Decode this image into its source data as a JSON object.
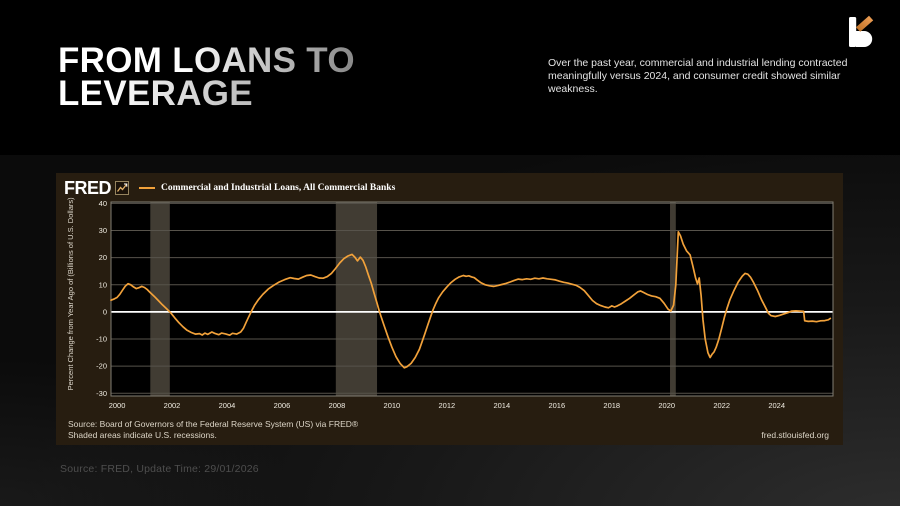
{
  "slide": {
    "title_line1": "FROM LOANS TO",
    "title_line2": "LEVERAGE",
    "description": "Over the past year, commercial and industrial lending contracted meaningfully versus 2024, and consumer credit showed similar weakness.",
    "footer": "Source: FRED, Update Time: 29/01/2026"
  },
  "chart": {
    "brand": "FRED",
    "legend_label": "Commercial and Industrial Loans, All Commercial Banks",
    "source_line1": "Source: Board of Governors of the Federal Reserve System (US) via FRED®",
    "source_line2": "Shaded areas indicate U.S. recessions.",
    "site": "fred.stlouisfed.org"
  },
  "chart_data": {
    "type": "line",
    "title": "Commercial and Industrial Loans, All Commercial Banks",
    "ylabel": "Percent Change from Year Ago of (Billions of U.S. Dollars)",
    "xlabel": "",
    "x_ticks": [
      2000,
      2002,
      2004,
      2006,
      2008,
      2010,
      2012,
      2014,
      2016,
      2018,
      2020,
      2022,
      2024
    ],
    "y_ticks": [
      40,
      30,
      20,
      10,
      0,
      -10,
      -20,
      -30
    ],
    "xlim": [
      1999.78,
      2026.05
    ],
    "ylim": [
      -31,
      40.5
    ],
    "grid": true,
    "legend_position": "top-left",
    "line_color": "#f1a13a",
    "zero_line_color": "#ffffff",
    "plot_bg": "#000000",
    "panel_bg": "#271d10",
    "grid_color": "#57534b",
    "border_color": "#827e74",
    "recession_band_color": "#413c33",
    "tick_label_color": "#f0ece2",
    "recessions": [
      [
        2001.21,
        2001.92
      ],
      [
        2007.96,
        2009.46
      ],
      [
        2020.12,
        2020.33
      ]
    ],
    "series": [
      {
        "name": "Commercial and Industrial Loans, All Commercial Banks",
        "points": [
          [
            1999.78,
            4.3
          ],
          [
            1999.9,
            4.8
          ],
          [
            2000.0,
            5.3
          ],
          [
            2000.1,
            6.5
          ],
          [
            2000.2,
            8.0
          ],
          [
            2000.3,
            9.5
          ],
          [
            2000.4,
            10.4
          ],
          [
            2000.5,
            10.0
          ],
          [
            2000.6,
            9.2
          ],
          [
            2000.7,
            8.6
          ],
          [
            2000.8,
            8.9
          ],
          [
            2000.9,
            9.4
          ],
          [
            2001.0,
            9.0
          ],
          [
            2001.1,
            8.2
          ],
          [
            2001.2,
            7.2
          ],
          [
            2001.35,
            5.8
          ],
          [
            2001.5,
            4.2
          ],
          [
            2001.65,
            2.6
          ],
          [
            2001.8,
            1.2
          ],
          [
            2001.95,
            -0.3
          ],
          [
            2002.1,
            -2.2
          ],
          [
            2002.25,
            -4.0
          ],
          [
            2002.4,
            -5.5
          ],
          [
            2002.55,
            -6.8
          ],
          [
            2002.7,
            -7.6
          ],
          [
            2002.85,
            -8.2
          ],
          [
            2003.0,
            -8.0
          ],
          [
            2003.1,
            -8.5
          ],
          [
            2003.2,
            -7.8
          ],
          [
            2003.3,
            -8.3
          ],
          [
            2003.45,
            -7.4
          ],
          [
            2003.55,
            -7.9
          ],
          [
            2003.7,
            -8.4
          ],
          [
            2003.8,
            -7.8
          ],
          [
            2003.95,
            -8.1
          ],
          [
            2004.1,
            -8.6
          ],
          [
            2004.2,
            -7.9
          ],
          [
            2004.35,
            -8.2
          ],
          [
            2004.5,
            -7.4
          ],
          [
            2004.6,
            -6.0
          ],
          [
            2004.7,
            -3.8
          ],
          [
            2004.8,
            -1.6
          ],
          [
            2004.9,
            0.4
          ],
          [
            2005.0,
            2.4
          ],
          [
            2005.15,
            4.6
          ],
          [
            2005.3,
            6.4
          ],
          [
            2005.5,
            8.4
          ],
          [
            2005.7,
            9.8
          ],
          [
            2005.9,
            11.0
          ],
          [
            2006.1,
            11.9
          ],
          [
            2006.3,
            12.6
          ],
          [
            2006.45,
            12.3
          ],
          [
            2006.6,
            12.1
          ],
          [
            2006.75,
            12.8
          ],
          [
            2006.9,
            13.4
          ],
          [
            2007.05,
            13.6
          ],
          [
            2007.2,
            13.0
          ],
          [
            2007.35,
            12.5
          ],
          [
            2007.5,
            12.4
          ],
          [
            2007.65,
            13.0
          ],
          [
            2007.8,
            14.2
          ],
          [
            2007.95,
            16.0
          ],
          [
            2008.1,
            18.0
          ],
          [
            2008.25,
            19.6
          ],
          [
            2008.4,
            20.6
          ],
          [
            2008.55,
            21.2
          ],
          [
            2008.65,
            20.2
          ],
          [
            2008.75,
            18.8
          ],
          [
            2008.85,
            20.2
          ],
          [
            2008.95,
            19.0
          ],
          [
            2009.05,
            16.5
          ],
          [
            2009.15,
            13.5
          ],
          [
            2009.25,
            10.5
          ],
          [
            2009.35,
            7.0
          ],
          [
            2009.45,
            3.5
          ],
          [
            2009.55,
            0.0
          ],
          [
            2009.7,
            -4.5
          ],
          [
            2009.85,
            -9.0
          ],
          [
            2010.0,
            -13.0
          ],
          [
            2010.15,
            -16.5
          ],
          [
            2010.3,
            -19.0
          ],
          [
            2010.45,
            -20.6
          ],
          [
            2010.55,
            -20.2
          ],
          [
            2010.7,
            -19.0
          ],
          [
            2010.85,
            -16.8
          ],
          [
            2011.0,
            -13.8
          ],
          [
            2011.1,
            -11.0
          ],
          [
            2011.2,
            -8.0
          ],
          [
            2011.3,
            -5.0
          ],
          [
            2011.4,
            -2.0
          ],
          [
            2011.5,
            0.8
          ],
          [
            2011.6,
            3.2
          ],
          [
            2011.7,
            5.2
          ],
          [
            2011.85,
            7.4
          ],
          [
            2012.0,
            9.2
          ],
          [
            2012.15,
            10.8
          ],
          [
            2012.3,
            12.0
          ],
          [
            2012.45,
            12.9
          ],
          [
            2012.6,
            13.4
          ],
          [
            2012.7,
            13.1
          ],
          [
            2012.8,
            13.3
          ],
          [
            2012.9,
            12.9
          ],
          [
            2013.0,
            12.6
          ],
          [
            2013.1,
            11.8
          ],
          [
            2013.25,
            10.7
          ],
          [
            2013.4,
            10.0
          ],
          [
            2013.55,
            9.6
          ],
          [
            2013.7,
            9.4
          ],
          [
            2013.85,
            9.7
          ],
          [
            2014.0,
            10.1
          ],
          [
            2014.15,
            10.5
          ],
          [
            2014.3,
            11.0
          ],
          [
            2014.45,
            11.6
          ],
          [
            2014.6,
            12.1
          ],
          [
            2014.75,
            11.9
          ],
          [
            2014.9,
            12.2
          ],
          [
            2015.05,
            12.0
          ],
          [
            2015.2,
            12.4
          ],
          [
            2015.35,
            12.2
          ],
          [
            2015.5,
            12.5
          ],
          [
            2015.65,
            12.2
          ],
          [
            2015.8,
            12.0
          ],
          [
            2015.95,
            11.8
          ],
          [
            2016.1,
            11.3
          ],
          [
            2016.25,
            10.9
          ],
          [
            2016.4,
            10.6
          ],
          [
            2016.55,
            10.2
          ],
          [
            2016.7,
            9.8
          ],
          [
            2016.85,
            9.0
          ],
          [
            2017.0,
            7.8
          ],
          [
            2017.15,
            6.0
          ],
          [
            2017.3,
            4.2
          ],
          [
            2017.45,
            3.0
          ],
          [
            2017.6,
            2.3
          ],
          [
            2017.75,
            1.8
          ],
          [
            2017.88,
            1.5
          ],
          [
            2018.0,
            2.2
          ],
          [
            2018.1,
            1.8
          ],
          [
            2018.2,
            2.2
          ],
          [
            2018.35,
            3.0
          ],
          [
            2018.5,
            4.0
          ],
          [
            2018.65,
            5.0
          ],
          [
            2018.8,
            6.2
          ],
          [
            2018.95,
            7.4
          ],
          [
            2019.05,
            7.7
          ],
          [
            2019.15,
            7.2
          ],
          [
            2019.3,
            6.4
          ],
          [
            2019.45,
            5.9
          ],
          [
            2019.6,
            5.6
          ],
          [
            2019.75,
            5.0
          ],
          [
            2019.9,
            3.2
          ],
          [
            2020.05,
            1.0
          ],
          [
            2020.15,
            0.3
          ],
          [
            2020.25,
            2.5
          ],
          [
            2020.33,
            10.0
          ],
          [
            2020.42,
            29.5
          ],
          [
            2020.5,
            28.0
          ],
          [
            2020.6,
            25.0
          ],
          [
            2020.72,
            22.5
          ],
          [
            2020.85,
            21.0
          ],
          [
            2020.95,
            17.0
          ],
          [
            2021.05,
            12.5
          ],
          [
            2021.12,
            10.3
          ],
          [
            2021.18,
            12.5
          ],
          [
            2021.25,
            6.0
          ],
          [
            2021.32,
            -3.0
          ],
          [
            2021.4,
            -10.0
          ],
          [
            2021.5,
            -15.0
          ],
          [
            2021.58,
            -16.8
          ],
          [
            2021.65,
            -15.6
          ],
          [
            2021.72,
            -14.8
          ],
          [
            2021.8,
            -13.0
          ],
          [
            2021.9,
            -10.0
          ],
          [
            2022.0,
            -6.0
          ],
          [
            2022.1,
            -2.0
          ],
          [
            2022.2,
            1.5
          ],
          [
            2022.3,
            4.5
          ],
          [
            2022.45,
            8.0
          ],
          [
            2022.6,
            11.0
          ],
          [
            2022.75,
            13.2
          ],
          [
            2022.85,
            14.2
          ],
          [
            2022.95,
            13.9
          ],
          [
            2023.05,
            12.8
          ],
          [
            2023.15,
            11.0
          ],
          [
            2023.3,
            8.0
          ],
          [
            2023.45,
            4.5
          ],
          [
            2023.6,
            1.5
          ],
          [
            2023.7,
            -0.5
          ],
          [
            2023.8,
            -1.4
          ],
          [
            2023.95,
            -1.7
          ],
          [
            2024.1,
            -1.3
          ],
          [
            2024.25,
            -0.8
          ],
          [
            2024.4,
            -0.3
          ],
          [
            2024.55,
            0.3
          ],
          [
            2024.7,
            0.4
          ],
          [
            2024.85,
            0.3
          ],
          [
            2024.98,
            0.2
          ],
          [
            2025.02,
            -3.3
          ],
          [
            2025.15,
            -3.5
          ],
          [
            2025.3,
            -3.4
          ],
          [
            2025.45,
            -3.6
          ],
          [
            2025.6,
            -3.3
          ],
          [
            2025.75,
            -3.2
          ],
          [
            2025.88,
            -2.9
          ],
          [
            2025.95,
            -2.4
          ]
        ]
      }
    ]
  }
}
